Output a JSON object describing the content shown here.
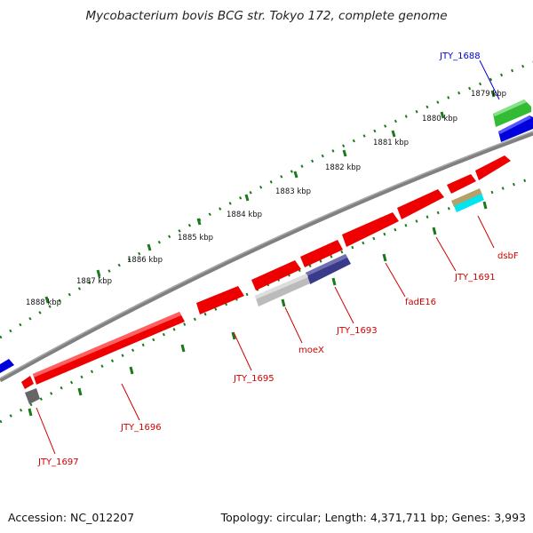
{
  "title": "Mycobacterium bovis BCG str. Tokyo 172, complete genome",
  "accession": "Accession: NC_012207",
  "topology": "Topology: circular; Length: 4,371,711 bp; Genes: 3,993",
  "kbp_labels": [
    "1879 kbp",
    "1880 kbp",
    "1881 kbp",
    "1882 kbp",
    "1883 kbp",
    "1884 kbp",
    "1885 kbp",
    "1886 kbp",
    "1887 kbp",
    "1888 kbp"
  ],
  "gene_labels": {
    "jty1688": "JTY_1688",
    "dsbF": "dsbF",
    "jty1691": "JTY_1691",
    "fadE16": "fadE16",
    "jty1693": "JTY_1693",
    "moeX": "moeX",
    "jty1695": "JTY_1695",
    "jty1696": "JTY_1696",
    "jty1697": "JTY_1697"
  },
  "colors": {
    "backbone": "#808080",
    "ticks": "#1a7a1a",
    "red": "#ee0000",
    "green": "#33bb33",
    "blue": "#0000dd",
    "navy": "#3a3a8a",
    "light_gray": "#bbbbbb",
    "dark_gray": "#666666",
    "tan": "#b5a06a",
    "cyan": "#00e5ee",
    "label_red": "#d00000",
    "label_blue": "#0000cc"
  }
}
